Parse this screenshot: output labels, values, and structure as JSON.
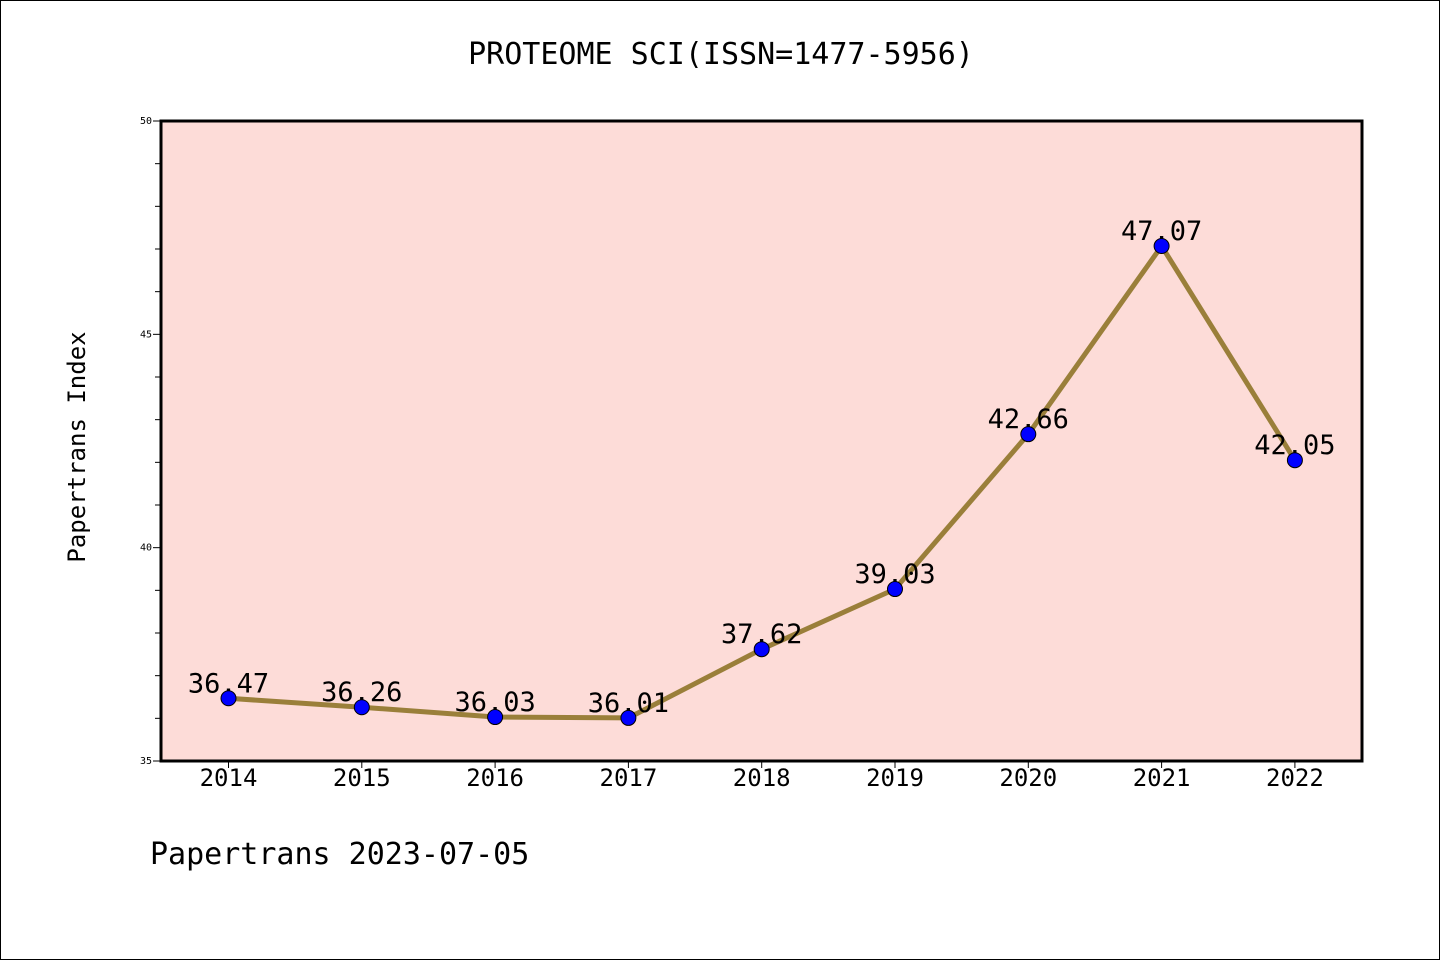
{
  "chart_data": {
    "type": "line",
    "title": "PROTEOME SCI(ISSN=1477-5956)",
    "xlabel": "",
    "ylabel": "Papertrans Index",
    "categories": [
      "2014",
      "2015",
      "2016",
      "2017",
      "2018",
      "2019",
      "2020",
      "2021",
      "2022"
    ],
    "series": [
      {
        "values": [
          36.47,
          36.26,
          36.03,
          36.01,
          37.62,
          39.03,
          42.66,
          47.07,
          42.05
        ],
        "labels": [
          "36.47",
          "36.26",
          "36.03",
          "36.01",
          "37.62",
          "39.03",
          "42.66",
          "47.07",
          "42.05"
        ]
      }
    ],
    "ylim": [
      35,
      50
    ],
    "yticks": [
      "35",
      "40",
      "45",
      "50"
    ],
    "grid": false,
    "legend": "none",
    "colors": {
      "plot_background": "#fddcd8",
      "line": "#9a7f3a",
      "marker": "#0000ff"
    }
  },
  "footer": "Papertrans 2023-07-05"
}
